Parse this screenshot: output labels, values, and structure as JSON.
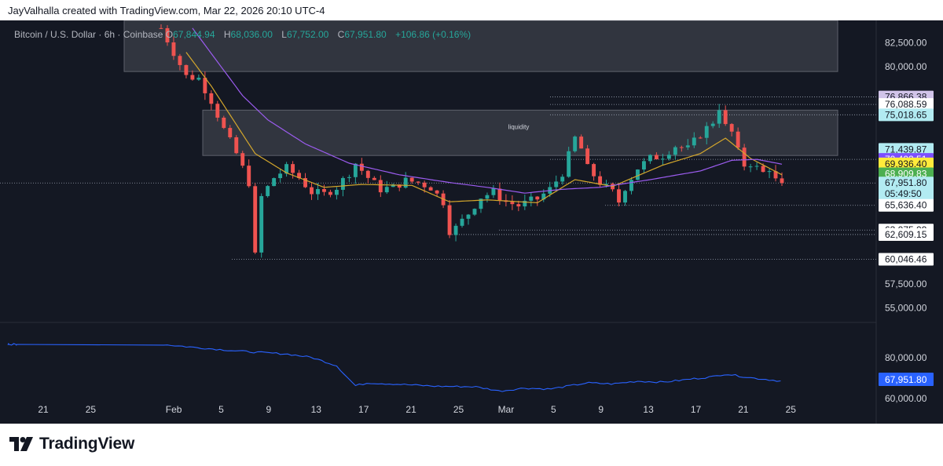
{
  "header": {
    "credit": "JayValhalla created with TradingView.com, Mar 22, 2026 20:10 UTC-4"
  },
  "legend": {
    "symbol": "Bitcoin / U.S. Dollar · 6h · Coinbase",
    "o_label": "O",
    "o_value": "67,844.94",
    "h_label": "H",
    "h_value": "68,036.00",
    "l_label": "L",
    "l_value": "67,752.00",
    "c_label": "C",
    "c_value": "67,951.80",
    "change": "+106.86 (+0.16%)"
  },
  "footer": {
    "brand": "TradingView"
  },
  "colors": {
    "background": "#141823",
    "up": "#26a69a",
    "down": "#ef5350",
    "ema_fast": "#d4a72c",
    "ema_slow": "#9c5cf0",
    "indicator": "#2962ff"
  },
  "chart_data": {
    "type": "candlestick",
    "timeframe": "6h",
    "ylim": [
      53500,
      84800
    ],
    "y_ticks": [
      "82,500.00",
      "80,000.00",
      "57,500.00",
      "55,000.00"
    ],
    "x_ticks": [
      "21",
      "25",
      "Feb",
      "5",
      "9",
      "13",
      "17",
      "21",
      "25",
      "Mar",
      "5",
      "9",
      "13",
      "17",
      "21",
      "25"
    ],
    "price_path": [
      [
        0,
        84000
      ],
      [
        2,
        81500
      ],
      [
        4,
        79000
      ],
      [
        6,
        78800
      ],
      [
        8,
        76500
      ],
      [
        10,
        73500
      ],
      [
        12,
        71000
      ],
      [
        14,
        68000
      ],
      [
        15,
        60400
      ],
      [
        16,
        66500
      ],
      [
        18,
        68500
      ],
      [
        20,
        69500
      ],
      [
        22,
        68500
      ],
      [
        24,
        67000
      ],
      [
        26,
        66800
      ],
      [
        28,
        67500
      ],
      [
        30,
        69000
      ],
      [
        31,
        70000
      ],
      [
        33,
        68500
      ],
      [
        35,
        67300
      ],
      [
        37,
        67500
      ],
      [
        39,
        68200
      ],
      [
        41,
        68000
      ],
      [
        43,
        67500
      ],
      [
        45,
        66000
      ],
      [
        46,
        63000
      ],
      [
        47,
        63300
      ],
      [
        49,
        64800
      ],
      [
        51,
        66500
      ],
      [
        53,
        67000
      ],
      [
        55,
        66000
      ],
      [
        57,
        65600
      ],
      [
        59,
        66100
      ],
      [
        60,
        66300
      ],
      [
        62,
        67300
      ],
      [
        64,
        69000
      ],
      [
        66,
        72600
      ],
      [
        67,
        71500
      ],
      [
        68,
        69500
      ],
      [
        70,
        68000
      ],
      [
        72,
        67000
      ],
      [
        73,
        66000
      ],
      [
        74,
        67500
      ],
      [
        76,
        69500
      ],
      [
        78,
        70500
      ],
      [
        80,
        70800
      ],
      [
        82,
        71800
      ],
      [
        84,
        71500
      ],
      [
        86,
        73000
      ],
      [
        88,
        74300
      ],
      [
        89,
        75800
      ],
      [
        90,
        73800
      ],
      [
        91,
        73200
      ],
      [
        92,
        71200
      ],
      [
        93,
        69800
      ],
      [
        94,
        70000
      ],
      [
        96,
        69000
      ],
      [
        97,
        69500
      ],
      [
        98,
        68200
      ],
      [
        99,
        67951.8
      ]
    ],
    "ema_fast": [
      [
        4,
        81500
      ],
      [
        8,
        78000
      ],
      [
        12,
        74000
      ],
      [
        15,
        71000
      ],
      [
        20,
        69000
      ],
      [
        26,
        67500
      ],
      [
        32,
        67800
      ],
      [
        40,
        67700
      ],
      [
        46,
        66000
      ],
      [
        52,
        66200
      ],
      [
        60,
        65900
      ],
      [
        66,
        68300
      ],
      [
        72,
        67600
      ],
      [
        80,
        69800
      ],
      [
        86,
        71000
      ],
      [
        90,
        72600
      ],
      [
        94,
        70500
      ],
      [
        99,
        68800
      ]
    ],
    "ema_slow": [
      [
        5,
        84000
      ],
      [
        9,
        80500
      ],
      [
        13,
        77000
      ],
      [
        17,
        74500
      ],
      [
        23,
        72000
      ],
      [
        30,
        70000
      ],
      [
        38,
        68800
      ],
      [
        46,
        68000
      ],
      [
        52,
        67500
      ],
      [
        58,
        66900
      ],
      [
        64,
        67300
      ],
      [
        70,
        67500
      ],
      [
        78,
        68300
      ],
      [
        86,
        69200
      ],
      [
        91,
        70300
      ],
      [
        95,
        70400
      ],
      [
        99,
        69900
      ]
    ],
    "zones": [
      {
        "label": "",
        "top": 84800,
        "bottom": 79500,
        "x_start": 0.028,
        "x_end": 1.0
      },
      {
        "label": "liquidity",
        "top": 75500,
        "bottom": 70800,
        "x_start": 0.1,
        "x_end": 1.0
      }
    ],
    "levels": [
      {
        "value": 76866.38,
        "label": "76,866.38",
        "bg": "#d1c4e9",
        "fg": "#131722"
      },
      {
        "value": 76088.59,
        "label": "76,088.59",
        "bg": "#ffffff",
        "fg": "#131722"
      },
      {
        "value": 75018.65,
        "label": "75,018.65",
        "bg": "#b2ebf2",
        "fg": "#131722"
      },
      {
        "value": 71439.87,
        "label": "71,439.87",
        "bg": "#b2ebf2",
        "fg": "#131722"
      },
      {
        "value": 70402.51,
        "label": "70,402.51",
        "bg": "#7c4dff",
        "fg": "#ffffff"
      },
      {
        "value": 69936.4,
        "label": "69,936.40",
        "bg": "#ffeb3b",
        "fg": "#131722"
      },
      {
        "value": 68909.83,
        "label": "68,909.83",
        "bg": "#4caf50",
        "fg": "#ffffff"
      },
      {
        "value": 67951.8,
        "label": "67,951.80",
        "bg": "#b2ebf2",
        "fg": "#131722",
        "extra": "05:49:50"
      },
      {
        "value": 65636.4,
        "label": "65,636.40",
        "bg": "#ffffff",
        "fg": "#131722"
      },
      {
        "value": 63075.09,
        "label": "63,075.09",
        "bg": "#ffffff",
        "fg": "#131722"
      },
      {
        "value": 62609.15,
        "label": "62,609.15",
        "bg": "#ffffff",
        "fg": "#131722"
      },
      {
        "value": 60046.46,
        "label": "60,046.46",
        "bg": "#ffffff",
        "fg": "#131722"
      }
    ],
    "indicator": {
      "y_tick": "80,000.00",
      "y_tick_low": "60,000.00",
      "last_label": "67,951.80"
    }
  }
}
